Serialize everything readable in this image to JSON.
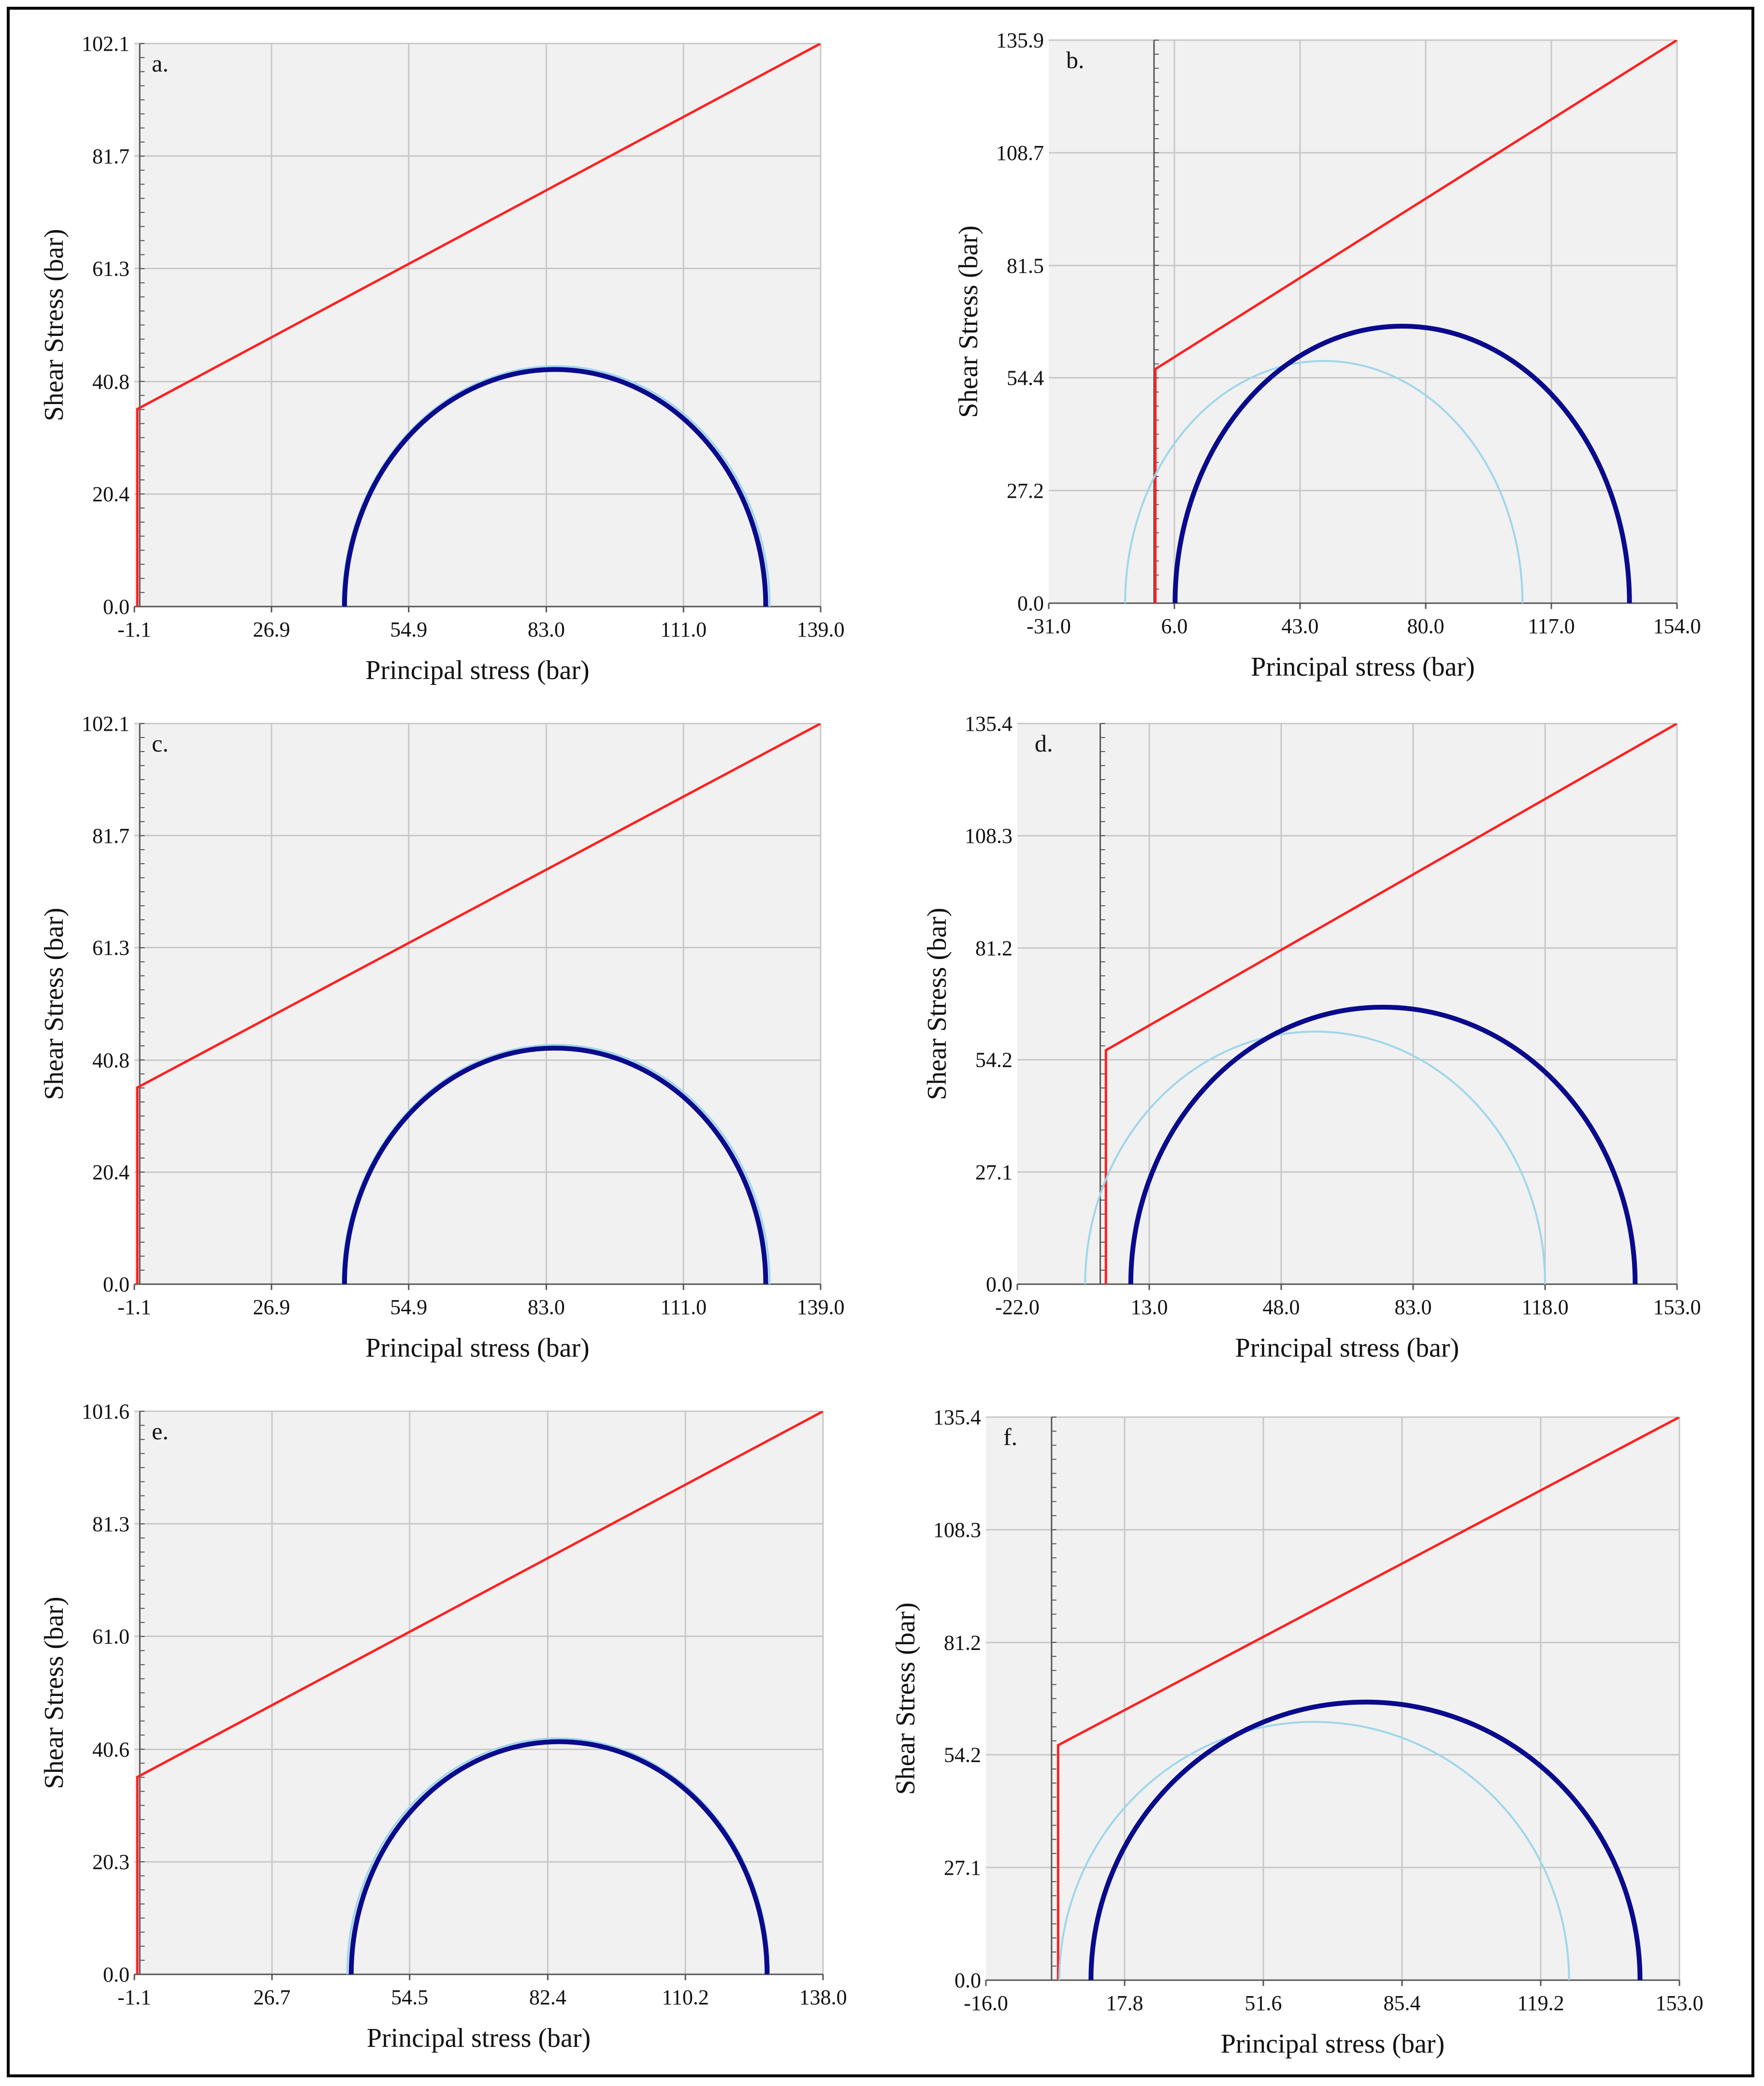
{
  "figure": {
    "description_colors": {
      "background": "#f1f1f1",
      "grid": "#c8c8c8",
      "axis": "#555555",
      "failure_envelope": "#ff2020",
      "circle_current": "#0a0a8c",
      "circle_initial": "#9ed6ea"
    }
  },
  "chart_data": [
    {
      "type": "line",
      "panel": "a.",
      "xlabel": "Principal stress (bar)",
      "ylabel": "Shear Stress (bar)",
      "xlim": [
        -1.1,
        139.0
      ],
      "ylim": [
        0.0,
        102.1
      ],
      "xticks": [
        -1.1,
        26.9,
        54.9,
        83.0,
        111.0,
        139.0
      ],
      "xtick_labels": [
        "-1.1",
        "26.9",
        "54.9",
        "83.0",
        "111.0",
        "139.0"
      ],
      "yticks": [
        0.0,
        20.4,
        40.8,
        61.3,
        81.7,
        102.1
      ],
      "ytick_labels": [
        "0.0",
        "20.4",
        "40.8",
        "61.3",
        "81.7",
        "102.1"
      ],
      "series": [
        {
          "name": "failure envelope",
          "kind": "envelope",
          "x": [
            -0.5,
            -0.5,
            139.0
          ],
          "y": [
            0.0,
            35.8,
            102.1
          ]
        },
        {
          "name": "initial Mohr circle",
          "kind": "circle-initial",
          "center": 85.0,
          "radius": 43.6
        },
        {
          "name": "current Mohr circle",
          "kind": "circle-current",
          "center": 84.8,
          "radius": 43.0
        }
      ]
    },
    {
      "type": "line",
      "panel": "b.",
      "xlabel": "Principal stress (bar)",
      "ylabel": "Shear Stress (bar)",
      "xlim": [
        -31.0,
        154.0
      ],
      "ylim": [
        0.0,
        135.9
      ],
      "xticks": [
        -31.0,
        6.0,
        43.0,
        80.0,
        117.0,
        154.0
      ],
      "xtick_labels": [
        "-31.0",
        "6.0",
        "43.0",
        "80.0",
        "117.0",
        "154.0"
      ],
      "yticks": [
        0.0,
        27.2,
        54.4,
        81.5,
        108.7,
        135.9
      ],
      "ytick_labels": [
        "0.0",
        "27.2",
        "54.4",
        "81.5",
        "108.7",
        "135.9"
      ],
      "series": [
        {
          "name": "failure envelope",
          "kind": "envelope",
          "x": [
            0.4,
            0.4,
            154.0
          ],
          "y": [
            0.0,
            56.5,
            135.9
          ]
        },
        {
          "name": "initial Mohr circle",
          "kind": "circle-initial",
          "center": 50.0,
          "radius": 58.5
        },
        {
          "name": "current Mohr circle",
          "kind": "circle-current",
          "center": 73.1,
          "radius": 66.9
        }
      ]
    },
    {
      "type": "line",
      "panel": "c.",
      "xlabel": "Principal stress (bar)",
      "ylabel": "Shear Stress (bar)",
      "xlim": [
        -1.1,
        139.0
      ],
      "ylim": [
        0.0,
        102.1
      ],
      "xticks": [
        -1.1,
        26.9,
        54.9,
        83.0,
        111.0,
        139.0
      ],
      "xtick_labels": [
        "-1.1",
        "26.9",
        "54.9",
        "83.0",
        "111.0",
        "139.0"
      ],
      "yticks": [
        0.0,
        20.4,
        40.8,
        61.3,
        81.7,
        102.1
      ],
      "ytick_labels": [
        "0.0",
        "20.4",
        "40.8",
        "61.3",
        "81.7",
        "102.1"
      ],
      "series": [
        {
          "name": "failure envelope",
          "kind": "envelope",
          "x": [
            -0.5,
            -0.5,
            139.0
          ],
          "y": [
            0.0,
            35.8,
            102.1
          ]
        },
        {
          "name": "initial Mohr circle",
          "kind": "circle-initial",
          "center": 85.0,
          "radius": 43.6
        },
        {
          "name": "current Mohr circle",
          "kind": "circle-current",
          "center": 84.8,
          "radius": 43.0
        }
      ]
    },
    {
      "type": "line",
      "panel": "d.",
      "xlabel": "Principal stress (bar)",
      "ylabel": "Shear Stress (bar)",
      "xlim": [
        -22.0,
        153.0
      ],
      "ylim": [
        0.0,
        135.4
      ],
      "xticks": [
        -22.0,
        13.0,
        48.0,
        83.0,
        118.0,
        153.0
      ],
      "xtick_labels": [
        "-22.0",
        "13.0",
        "48.0",
        "83.0",
        "118.0",
        "153.0"
      ],
      "yticks": [
        0.0,
        27.1,
        54.2,
        81.2,
        108.3,
        135.4
      ],
      "ytick_labels": [
        "0.0",
        "27.1",
        "54.2",
        "81.2",
        "108.3",
        "135.4"
      ],
      "series": [
        {
          "name": "failure envelope",
          "kind": "envelope",
          "x": [
            1.5,
            1.5,
            153.0
          ],
          "y": [
            0.0,
            56.5,
            135.4
          ]
        },
        {
          "name": "initial Mohr circle",
          "kind": "circle-initial",
          "center": 57.0,
          "radius": 61.0
        },
        {
          "name": "current Mohr circle",
          "kind": "circle-current",
          "center": 75.0,
          "radius": 66.9
        }
      ]
    },
    {
      "type": "line",
      "panel": "e.",
      "xlabel": "Principal stress (bar)",
      "ylabel": "Shear Stress (bar)",
      "xlim": [
        -1.1,
        138.0
      ],
      "ylim": [
        0.0,
        101.6
      ],
      "xticks": [
        -1.1,
        26.7,
        54.5,
        82.4,
        110.2,
        138.0
      ],
      "xtick_labels": [
        "-1.1",
        "26.7",
        "54.5",
        "82.4",
        "110.2",
        "138.0"
      ],
      "yticks": [
        0.0,
        20.3,
        40.6,
        61.0,
        81.3,
        101.6
      ],
      "ytick_labels": [
        "0.0",
        "20.3",
        "40.6",
        "61.0",
        "81.3",
        "101.6"
      ],
      "series": [
        {
          "name": "failure envelope",
          "kind": "envelope",
          "x": [
            -0.5,
            -0.5,
            138.0
          ],
          "y": [
            0.0,
            35.6,
            101.6
          ]
        },
        {
          "name": "initial Mohr circle",
          "kind": "circle-initial",
          "center": 84.5,
          "radius": 42.6
        },
        {
          "name": "current Mohr circle",
          "kind": "circle-current",
          "center": 84.7,
          "radius": 42.0
        }
      ]
    },
    {
      "type": "line",
      "panel": "f.",
      "xlabel": "Principal stress (bar)",
      "ylabel": "Shear Stress (bar)",
      "xlim": [
        -16.0,
        153.0
      ],
      "ylim": [
        0.0,
        135.4
      ],
      "xticks": [
        -16.0,
        17.8,
        51.6,
        85.4,
        119.2,
        153.0
      ],
      "xtick_labels": [
        "-16.0",
        "17.8",
        "51.6",
        "85.4",
        "119.2",
        "153.0"
      ],
      "yticks": [
        0.0,
        27.1,
        54.2,
        81.2,
        108.3,
        135.4
      ],
      "ytick_labels": [
        "0.0",
        "27.1",
        "54.2",
        "81.2",
        "108.3",
        "135.4"
      ],
      "series": [
        {
          "name": "failure envelope",
          "kind": "envelope",
          "x": [
            1.6,
            1.6,
            153.0
          ],
          "y": [
            0.0,
            56.5,
            135.4
          ]
        },
        {
          "name": "initial Mohr circle",
          "kind": "circle-initial",
          "center": 64.0,
          "radius": 62.1
        },
        {
          "name": "current Mohr circle",
          "kind": "circle-current",
          "center": 76.5,
          "radius": 66.9
        }
      ]
    }
  ]
}
